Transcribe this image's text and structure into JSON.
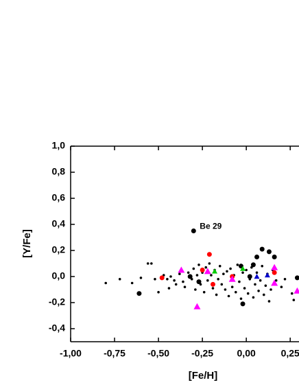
{
  "chart_data": {
    "type": "scatter",
    "x_label": "[Fe/H]",
    "y_label": "[Y/Fe]",
    "annotation": "Be 29",
    "xlim": [
      -1.0,
      0.3
    ],
    "ylim": [
      -0.5,
      1.0
    ],
    "xticks": [
      {
        "value": -1.0,
        "label": "-1,00"
      },
      {
        "value": -0.75,
        "label": "-0,75"
      },
      {
        "value": -0.5,
        "label": "-0,50"
      },
      {
        "value": -0.25,
        "label": "-0,25"
      },
      {
        "value": 0,
        "label": "0,00"
      },
      {
        "value": 0.25,
        "label": "0,25"
      }
    ],
    "yticks": [
      {
        "value": -0.4,
        "label": "-0,4"
      },
      {
        "value": -0.2,
        "label": "-0,2"
      },
      {
        "value": 0,
        "label": "0,0"
      },
      {
        "value": 0.2,
        "label": "0,2"
      },
      {
        "value": 0.4,
        "label": "0,4"
      },
      {
        "value": 0.6,
        "label": "0,6"
      },
      {
        "value": 0.8,
        "label": "0,8"
      },
      {
        "value": 1.0,
        "label": "1,0"
      }
    ],
    "series": [
      {
        "color": "#000000",
        "marker": "circle",
        "size": 3.5,
        "x": [
          -0.3,
          -0.61,
          0.09,
          0.13,
          0.16,
          0.06,
          0.04,
          -0.03,
          -0.02,
          0.29,
          -0.27,
          -0.32,
          0.02
        ],
        "values": [
          0.35,
          -0.13,
          0.21,
          0.19,
          0.15,
          0.15,
          0.09,
          0.08,
          -0.21,
          -0.01,
          -0.04,
          0.0,
          0.0
        ]
      },
      {
        "color": "#000000",
        "marker": "circle",
        "size": 1.8,
        "x": [
          -0.8,
          -0.72,
          -0.56,
          -0.54,
          -0.52,
          -0.5,
          -0.47,
          -0.45,
          -0.43,
          -0.41,
          -0.4,
          -0.38,
          -0.36,
          -0.35,
          -0.33,
          -0.31,
          -0.3,
          -0.29,
          -0.28,
          -0.27,
          -0.26,
          -0.25,
          -0.24,
          -0.23,
          -0.22,
          -0.21,
          -0.2,
          -0.19,
          -0.18,
          -0.17,
          -0.16,
          -0.15,
          -0.14,
          -0.13,
          -0.12,
          -0.11,
          -0.1,
          -0.09,
          -0.08,
          -0.07,
          -0.06,
          -0.05,
          -0.04,
          -0.03,
          -0.02,
          -0.01,
          0.0,
          0.01,
          0.02,
          0.03,
          0.04,
          0.05,
          0.06,
          0.07,
          0.08,
          0.09,
          0.1,
          0.11,
          0.12,
          0.13,
          0.14,
          0.15,
          0.17,
          0.2,
          0.22,
          0.26,
          0.27,
          -0.6,
          -0.65,
          -0.44
        ],
        "values": [
          -0.05,
          -0.02,
          0.1,
          0.1,
          -0.02,
          -0.12,
          0.01,
          -0.02,
          0.0,
          -0.03,
          -0.06,
          0.02,
          -0.04,
          -0.08,
          0.03,
          -0.02,
          0.06,
          -0.1,
          0.01,
          0.09,
          -0.06,
          0.03,
          -0.12,
          0.07,
          -0.03,
          0.1,
          0.01,
          -0.09,
          0.05,
          -0.14,
          -0.02,
          0.08,
          -0.06,
          0.02,
          -0.1,
          0.04,
          -0.15,
          0.06,
          -0.08,
          0.01,
          -0.12,
          0.09,
          -0.04,
          -0.17,
          0.03,
          -0.09,
          0.05,
          -0.13,
          -0.02,
          0.07,
          -0.16,
          -0.06,
          0.03,
          -0.11,
          -0.03,
          0.08,
          -0.14,
          -0.07,
          0.02,
          -0.19,
          -0.1,
          0.05,
          -0.03,
          -0.08,
          -0.02,
          -0.13,
          -0.18,
          -0.01,
          -0.05,
          -0.09
        ]
      },
      {
        "color": "#ff0000",
        "marker": "circle",
        "size": 3.5,
        "x": [
          -0.21,
          -0.48,
          -0.25,
          -0.19,
          0.16,
          -0.08
        ],
        "values": [
          0.17,
          -0.01,
          0.05,
          -0.06,
          0.03,
          0.0
        ]
      },
      {
        "color": "#ff00ff",
        "marker": "triangle",
        "size": 5,
        "x": [
          -0.37,
          -0.28,
          0.16,
          0.16,
          0.29,
          -0.08,
          -0.22
        ],
        "values": [
          0.05,
          -0.23,
          0.07,
          -0.05,
          -0.11,
          -0.02,
          0.04
        ]
      },
      {
        "color": "#00cc00",
        "marker": "triangle",
        "size": 4,
        "x": [
          -0.18,
          -0.02
        ],
        "values": [
          0.04,
          0.06
        ]
      },
      {
        "color": "#0000cc",
        "marker": "triangle",
        "size": 4,
        "x": [
          0.06,
          0.12
        ],
        "values": [
          0.0,
          0.01
        ]
      }
    ]
  }
}
